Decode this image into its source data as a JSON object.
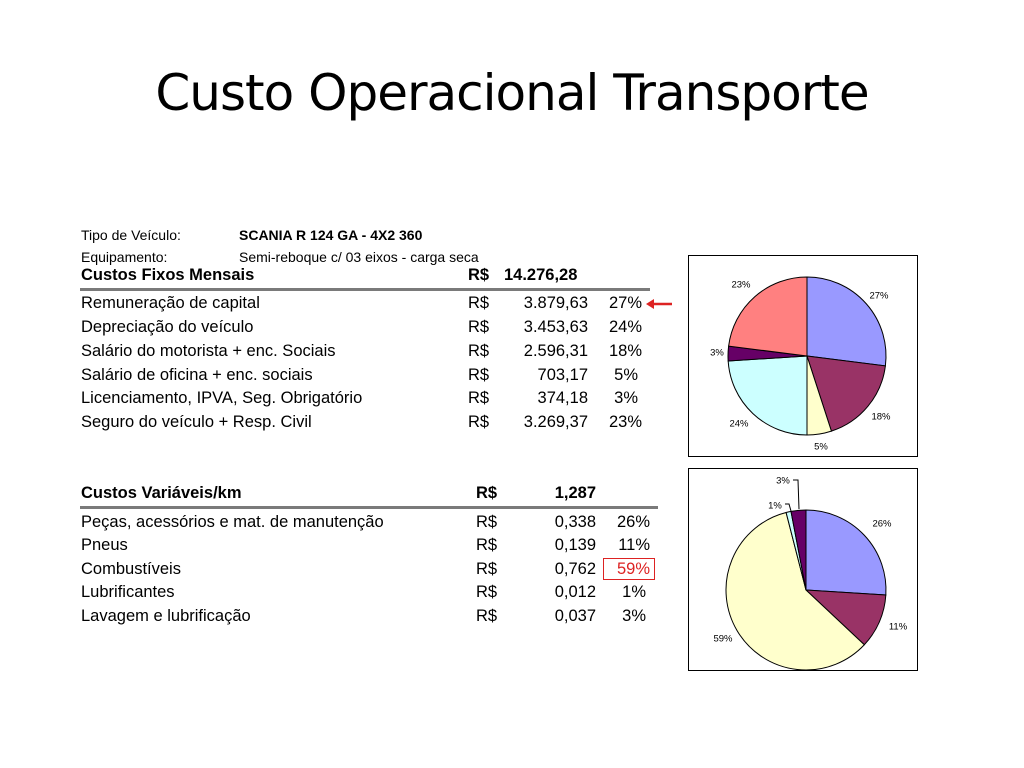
{
  "title": "Custo Operacional Transporte",
  "vehicle": {
    "tipo_label": "Tipo de Veículo:",
    "tipo_value": "SCANIA R 124 GA - 4X2 360",
    "equip_label": "Equipamento:",
    "equip_value": "Semi-reboque c/ 03 eixos - carga seca"
  },
  "fixed": {
    "title": "Custos Fixos Mensais",
    "currency": "R$",
    "total": "14.276,28",
    "rows": [
      {
        "label": "Remuneração de capital",
        "currency": "R$",
        "value": "3.879,63",
        "pct": "27%"
      },
      {
        "label": "Depreciação do veículo",
        "currency": "R$",
        "value": "3.453,63",
        "pct": "24%"
      },
      {
        "label": "Salário do motorista + enc. Sociais",
        "currency": "R$",
        "value": "2.596,31",
        "pct": "18%"
      },
      {
        "label": "Salário de oficina + enc. sociais",
        "currency": "R$",
        "value": "703,17",
        "pct": "5%"
      },
      {
        "label": "Licenciamento, IPVA, Seg. Obrigatório",
        "currency": "R$",
        "value": "374,18",
        "pct": "3%"
      },
      {
        "label": "Seguro do veículo + Resp. Civil",
        "currency": "R$",
        "value": "3.269,37",
        "pct": "23%"
      }
    ]
  },
  "variable": {
    "title": "Custos Variáveis/km",
    "currency": "R$",
    "total": "1,287",
    "rows": [
      {
        "label": "Peças, acessórios e mat. de manutenção",
        "currency": "R$",
        "value": "0,338",
        "pct": "26%"
      },
      {
        "label": "Pneus",
        "currency": "R$",
        "value": "0,139",
        "pct": "11%"
      },
      {
        "label": "Combustíveis",
        "currency": "R$",
        "value": "0,762",
        "pct": "59%"
      },
      {
        "label": "Lubrificantes",
        "currency": "R$",
        "value": "0,012",
        "pct": "1%"
      },
      {
        "label": "Lavagem e lubrificação",
        "currency": "R$",
        "value": "0,037",
        "pct": "3%"
      }
    ]
  },
  "highlight_color": "#dd2222",
  "chart_data": [
    {
      "type": "pie",
      "values": [
        27,
        18,
        5,
        24,
        3,
        23
      ],
      "labels": [
        "27%",
        "18%",
        "5%",
        "24%",
        "3%",
        "23%"
      ],
      "colors": [
        "#9999ff",
        "#993366",
        "#ffffcc",
        "#ccffff",
        "#660066",
        "#ff8080"
      ]
    },
    {
      "type": "pie",
      "values": [
        26,
        11,
        59,
        1,
        3
      ],
      "labels": [
        "26%",
        "11%",
        "59%",
        "1%",
        "3%"
      ],
      "colors": [
        "#9999ff",
        "#993366",
        "#ffffcc",
        "#ccffff",
        "#660066"
      ]
    }
  ]
}
